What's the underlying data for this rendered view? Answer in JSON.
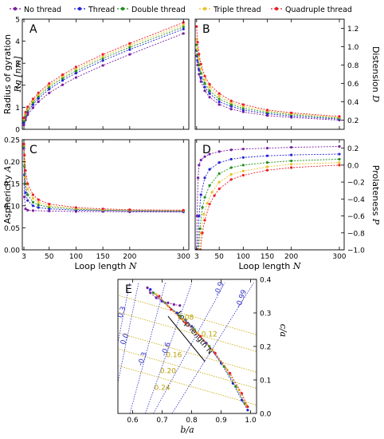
{
  "colors": {
    "no_thread": "#7a1fa2",
    "thread": "#2323d6",
    "double_thread": "#1f8f1f",
    "triple_thread": "#e8c22e",
    "quadruple_thread": "#e8202a",
    "contour": "#c8a800",
    "contour_label": "#b8a000",
    "shade_line": "#3030c8"
  },
  "legend": {
    "placement": "top",
    "items": [
      {
        "key": "no_thread",
        "label": "No thread"
      },
      {
        "key": "thread",
        "label": "Thread"
      },
      {
        "key": "double_thread",
        "label": "Double thread"
      },
      {
        "key": "triple_thread",
        "label": "Triple thread"
      },
      {
        "key": "quadruple_thread",
        "label": "Quadruple thread"
      }
    ]
  },
  "chart_data": [
    {
      "panel": "A",
      "type": "line",
      "ylabel": "Radius of gyration",
      "ylabel_math": "Rg [nm]",
      "xlim": [
        0,
        310
      ],
      "ylim": [
        0,
        5
      ],
      "yticks": [
        "0",
        "1",
        "2",
        "3",
        "4",
        "5"
      ],
      "ytick_values": [
        0,
        1,
        2,
        3,
        4,
        5
      ],
      "xtick_values": [
        3,
        50,
        100,
        150,
        200,
        300
      ],
      "series": [
        {
          "key": "no_thread",
          "x": [
            3,
            6,
            10,
            20,
            30,
            50,
            75,
            100,
            150,
            200,
            300
          ],
          "y": [
            0.2,
            0.42,
            0.66,
            0.98,
            1.25,
            1.65,
            2.02,
            2.35,
            2.9,
            3.4,
            4.35
          ]
        },
        {
          "key": "thread",
          "x": [
            3,
            6,
            10,
            20,
            30,
            50,
            75,
            100,
            150,
            200,
            300
          ],
          "y": [
            0.3,
            0.55,
            0.78,
            1.12,
            1.4,
            1.82,
            2.22,
            2.55,
            3.12,
            3.62,
            4.55
          ]
        },
        {
          "key": "double_thread",
          "x": [
            3,
            6,
            10,
            20,
            30,
            50,
            75,
            100,
            150,
            200,
            300
          ],
          "y": [
            0.38,
            0.62,
            0.86,
            1.22,
            1.5,
            1.92,
            2.32,
            2.65,
            3.22,
            3.72,
            4.65
          ]
        },
        {
          "key": "triple_thread",
          "x": [
            3,
            6,
            10,
            20,
            30,
            50,
            75,
            100,
            150,
            200,
            300
          ],
          "y": [
            0.46,
            0.7,
            0.94,
            1.3,
            1.58,
            2.0,
            2.4,
            2.75,
            3.3,
            3.82,
            4.75
          ]
        },
        {
          "key": "quadruple_thread",
          "x": [
            3,
            6,
            10,
            20,
            30,
            50,
            75,
            100,
            150,
            200,
            300
          ],
          "y": [
            0.52,
            0.78,
            1.02,
            1.38,
            1.66,
            2.08,
            2.48,
            2.83,
            3.4,
            3.9,
            4.85
          ]
        }
      ]
    },
    {
      "panel": "B",
      "type": "line",
      "ylabel": "Distension",
      "ylabel_math": "D",
      "xlim": [
        0,
        310
      ],
      "ylim": [
        0.1,
        1.3
      ],
      "yticks": [
        "0.2",
        "0.4",
        "0.6",
        "0.8",
        "1.0",
        "1.2"
      ],
      "ytick_values": [
        0.2,
        0.4,
        0.6,
        0.8,
        1.0,
        1.2
      ],
      "xtick_values": [
        3,
        50,
        100,
        150,
        200,
        300
      ],
      "series": [
        {
          "key": "no_thread",
          "x": [
            3,
            5,
            8,
            12,
            20,
            30,
            50,
            75,
            100,
            150,
            200,
            300
          ],
          "y": [
            0.9,
            0.8,
            0.7,
            0.62,
            0.52,
            0.45,
            0.37,
            0.32,
            0.29,
            0.25,
            0.23,
            0.2
          ]
        },
        {
          "key": "thread",
          "x": [
            3,
            5,
            8,
            12,
            20,
            30,
            50,
            75,
            100,
            150,
            200,
            300
          ],
          "y": [
            0.96,
            0.85,
            0.75,
            0.66,
            0.56,
            0.49,
            0.4,
            0.35,
            0.31,
            0.27,
            0.245,
            0.21
          ]
        },
        {
          "key": "double_thread",
          "x": [
            3,
            5,
            8,
            12,
            20,
            30,
            50,
            75,
            100,
            150,
            200,
            300
          ],
          "y": [
            1.02,
            0.91,
            0.8,
            0.71,
            0.6,
            0.52,
            0.43,
            0.37,
            0.33,
            0.285,
            0.26,
            0.22
          ]
        },
        {
          "key": "triple_thread",
          "x": [
            3,
            5,
            8,
            12,
            20,
            30,
            50,
            75,
            100,
            150,
            200,
            300
          ],
          "y": [
            1.08,
            0.97,
            0.86,
            0.76,
            0.64,
            0.56,
            0.46,
            0.39,
            0.35,
            0.3,
            0.27,
            0.23
          ]
        },
        {
          "key": "quadruple_thread",
          "x": [
            3,
            5,
            8,
            12,
            20,
            30,
            50,
            75,
            100,
            150,
            200,
            300
          ],
          "y": [
            1.22,
            1.05,
            0.92,
            0.81,
            0.68,
            0.59,
            0.49,
            0.41,
            0.37,
            0.31,
            0.28,
            0.24
          ]
        }
      ]
    },
    {
      "panel": "C",
      "type": "line",
      "ylabel": "Asphericity",
      "ylabel_math": "A",
      "xlabel": "Loop length",
      "xlabel_math": "N",
      "xlim": [
        0,
        310
      ],
      "ylim": [
        0,
        0.25
      ],
      "yticks": [
        "0.00",
        "0.05",
        "0.10",
        "0.15",
        "0.20",
        "0.25"
      ],
      "ytick_values": [
        0,
        0.05,
        0.1,
        0.15,
        0.2,
        0.25
      ],
      "xticks": [
        "3",
        "50",
        "100",
        "150",
        "200",
        "300"
      ],
      "xtick_values": [
        3,
        50,
        100,
        150,
        200,
        300
      ],
      "series": [
        {
          "key": "no_thread",
          "x": [
            3,
            4,
            6,
            10,
            20,
            50,
            100,
            150,
            200,
            300
          ],
          "y": [
            0.24,
            0.12,
            0.093,
            0.09,
            0.089,
            0.088,
            0.087,
            0.087,
            0.086,
            0.086
          ]
        },
        {
          "key": "thread",
          "x": [
            3,
            4,
            6,
            10,
            20,
            30,
            50,
            100,
            150,
            200,
            300
          ],
          "y": [
            0.23,
            0.17,
            0.13,
            0.112,
            0.1,
            0.096,
            0.093,
            0.09,
            0.089,
            0.088,
            0.087
          ]
        },
        {
          "key": "double_thread",
          "x": [
            3,
            4,
            6,
            10,
            20,
            30,
            50,
            100,
            150,
            200,
            300
          ],
          "y": [
            0.235,
            0.19,
            0.15,
            0.125,
            0.108,
            0.102,
            0.097,
            0.092,
            0.09,
            0.089,
            0.088
          ]
        },
        {
          "key": "triple_thread",
          "x": [
            3,
            4,
            6,
            10,
            20,
            30,
            50,
            100,
            150,
            200,
            300
          ],
          "y": [
            0.238,
            0.2,
            0.165,
            0.138,
            0.117,
            0.108,
            0.1,
            0.094,
            0.091,
            0.09,
            0.089
          ]
        },
        {
          "key": "quadruple_thread",
          "x": [
            3,
            4,
            6,
            10,
            20,
            30,
            50,
            100,
            150,
            200,
            300
          ],
          "y": [
            0.24,
            0.215,
            0.18,
            0.15,
            0.125,
            0.114,
            0.104,
            0.096,
            0.093,
            0.091,
            0.09
          ]
        }
      ]
    },
    {
      "panel": "D",
      "type": "line",
      "ylabel": "Prolateness",
      "ylabel_math": "P",
      "xlabel": "Loop length",
      "xlabel_math": "N",
      "xlim": [
        0,
        310
      ],
      "ylim": [
        -1.0,
        0.3
      ],
      "yticks": [
        "−1.0",
        "−0.8",
        "−0.6",
        "−0.4",
        "−0.2",
        "0.0",
        "0.2"
      ],
      "ytick_values": [
        -1.0,
        -0.8,
        -0.6,
        -0.4,
        -0.2,
        0.0,
        0.2
      ],
      "xticks": [
        "3",
        "50",
        "100",
        "150",
        "200",
        "300"
      ],
      "xtick_values": [
        3,
        50,
        100,
        150,
        200,
        300
      ],
      "series": [
        {
          "key": "no_thread",
          "x": [
            3,
            4,
            6,
            8,
            12,
            20,
            30,
            50,
            75,
            100,
            150,
            200,
            300
          ],
          "y": [
            -1.0,
            -0.6,
            -0.15,
            0.0,
            0.06,
            0.1,
            0.13,
            0.16,
            0.18,
            0.19,
            0.2,
            0.21,
            0.22
          ]
        },
        {
          "key": "thread",
          "x": [
            5,
            8,
            12,
            20,
            30,
            50,
            75,
            100,
            150,
            200,
            300
          ],
          "y": [
            -1.0,
            -0.6,
            -0.35,
            -0.15,
            -0.05,
            0.03,
            0.07,
            0.09,
            0.11,
            0.12,
            0.13
          ]
        },
        {
          "key": "double_thread",
          "x": [
            7,
            10,
            15,
            20,
            30,
            50,
            75,
            100,
            150,
            200,
            300
          ],
          "y": [
            -1.0,
            -0.75,
            -0.5,
            -0.38,
            -0.24,
            -0.1,
            -0.03,
            0.0,
            0.03,
            0.05,
            0.07
          ]
        },
        {
          "key": "triple_thread",
          "x": [
            9,
            12,
            18,
            25,
            35,
            50,
            75,
            100,
            150,
            200,
            300
          ],
          "y": [
            -1.0,
            -0.8,
            -0.58,
            -0.45,
            -0.32,
            -0.2,
            -0.11,
            -0.07,
            -0.02,
            0.01,
            0.03
          ]
        },
        {
          "key": "quadruple_thread",
          "x": [
            11,
            15,
            20,
            30,
            40,
            50,
            75,
            100,
            150,
            200,
            300
          ],
          "y": [
            -1.0,
            -0.8,
            -0.65,
            -0.46,
            -0.36,
            -0.28,
            -0.17,
            -0.12,
            -0.06,
            -0.03,
            0.0
          ]
        }
      ]
    },
    {
      "panel": "E",
      "type": "scatter",
      "xlabel": "b/a",
      "ylabel": "c/a",
      "xlim": [
        0.55,
        1.02
      ],
      "ylim": [
        0.0,
        0.4
      ],
      "xticks": [
        "0.6",
        "0.7",
        "0.8",
        "0.9",
        "1.0"
      ],
      "xtick_values": [
        0.6,
        0.7,
        0.8,
        0.9,
        1.0
      ],
      "yticks": [
        "0.0",
        "0.1",
        "0.2",
        "0.3",
        "0.4"
      ],
      "ytick_values": [
        0.0,
        0.1,
        0.2,
        0.3,
        0.4
      ],
      "annotation": "Loop length N",
      "contours": [
        {
          "label": "0.08",
          "label_b": 0.78,
          "label_c": 0.28
        },
        {
          "label": "0.12",
          "label_b": 0.86,
          "label_c": 0.23
        },
        {
          "label": "0.16",
          "label_b": 0.74,
          "label_c": 0.168
        },
        {
          "label": "0.20",
          "label_b": 0.72,
          "label_c": 0.12
        },
        {
          "label": "0.24",
          "label_b": 0.7,
          "label_c": 0.07
        }
      ],
      "shape_lines": [
        {
          "label": "0.3",
          "label_b": 0.57,
          "label_c": 0.3
        },
        {
          "label": "0.0",
          "label_b": 0.58,
          "label_c": 0.22
        },
        {
          "label": "-0.3",
          "label_b": 0.64,
          "label_c": 0.16
        },
        {
          "label": "-0.6",
          "label_b": 0.72,
          "label_c": 0.19
        },
        {
          "label": "-0.9",
          "label_b": 0.9,
          "label_c": 0.37
        },
        {
          "label": "-0.99",
          "label_b": 0.975,
          "label_c": 0.34
        }
      ],
      "series": [
        {
          "key": "no_thread",
          "x": [
            0.65,
            0.66,
            0.68,
            0.7,
            0.72,
            0.74,
            0.76
          ],
          "y": [
            0.375,
            0.36,
            0.345,
            0.335,
            0.33,
            0.325,
            0.322
          ]
        },
        {
          "key": "thread",
          "x": [
            0.66,
            0.7,
            0.75,
            0.8,
            0.85,
            0.9,
            0.94,
            0.97,
            0.99
          ],
          "y": [
            0.37,
            0.335,
            0.3,
            0.26,
            0.21,
            0.15,
            0.09,
            0.04,
            0.01
          ]
        },
        {
          "key": "double_thread",
          "x": [
            0.67,
            0.71,
            0.76,
            0.81,
            0.86,
            0.91,
            0.95,
            0.98
          ],
          "y": [
            0.36,
            0.33,
            0.29,
            0.25,
            0.2,
            0.14,
            0.08,
            0.03
          ]
        },
        {
          "key": "triple_thread",
          "x": [
            0.68,
            0.72,
            0.77,
            0.82,
            0.87,
            0.92,
            0.96,
            0.985
          ],
          "y": [
            0.355,
            0.32,
            0.28,
            0.24,
            0.19,
            0.13,
            0.07,
            0.025
          ]
        },
        {
          "key": "quadruple_thread",
          "x": [
            0.69,
            0.73,
            0.78,
            0.83,
            0.88,
            0.93,
            0.97,
            0.99
          ],
          "y": [
            0.35,
            0.31,
            0.27,
            0.23,
            0.18,
            0.12,
            0.06,
            0.02
          ]
        }
      ]
    }
  ]
}
